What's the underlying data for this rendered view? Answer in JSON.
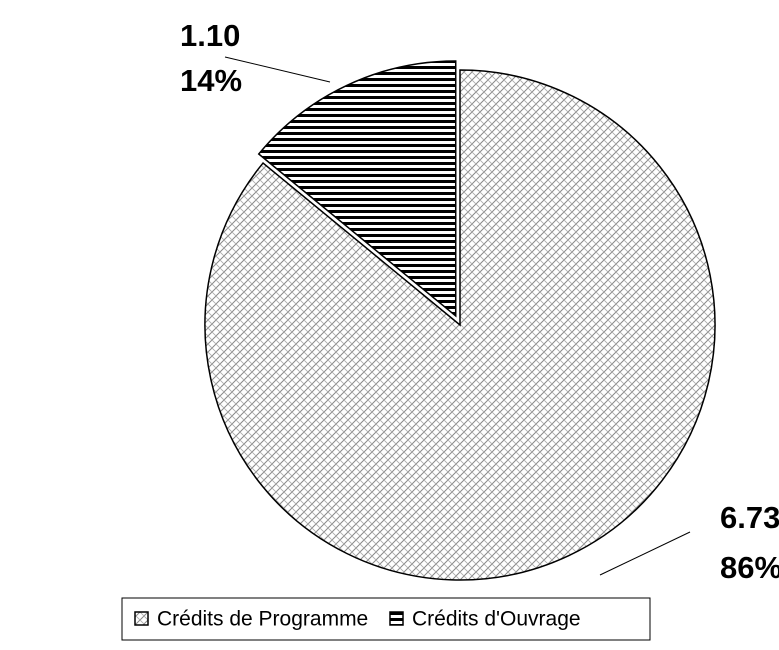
{
  "chart_data": {
    "type": "pie",
    "categories": [
      "Crédits de Programme",
      "Crédits d'Ouvrage"
    ],
    "values": [
      6.73,
      1.1
    ],
    "value_labels": [
      "6.73",
      "1.10"
    ],
    "percentages": [
      86,
      14
    ],
    "percent_labels": [
      "86%",
      "14%"
    ],
    "legend": "bottom"
  }
}
